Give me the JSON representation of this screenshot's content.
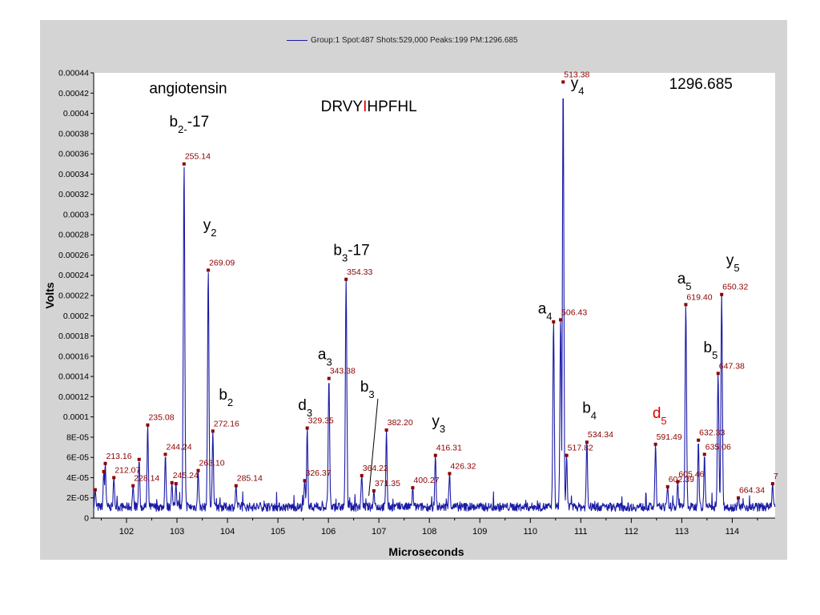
{
  "chart_data": {
    "type": "line",
    "legend": {
      "label": "Group:1 Spot:487 Shots:529,000 Peaks:199 PM:1296.685",
      "placement": "top-center"
    },
    "xlabel": "Microseconds",
    "ylabel": "Volts",
    "xlim": [
      101.35,
      114.85
    ],
    "ylim": [
      0,
      0.00044
    ],
    "x_ticks": [
      "102",
      "103",
      "104",
      "105",
      "106",
      "107",
      "108",
      "109",
      "110",
      "111",
      "112",
      "113",
      "114"
    ],
    "y_ticks": [
      "0",
      "2E-05",
      "4E-05",
      "6E-05",
      "8E-05",
      "0.0001",
      "0.00012",
      "0.00014",
      "0.00016",
      "0.00018",
      "0.0002",
      "0.00022",
      "0.00024",
      "0.00026",
      "0.00028",
      "0.0003",
      "0.00032",
      "0.00034",
      "0.00036",
      "0.00038",
      "0.0004",
      "0.00042",
      "0.00044"
    ],
    "line_color": "#1a1aa6",
    "label_color": "#8b0000",
    "peaks": [
      {
        "x": 101.38,
        "y": 2.8e-05,
        "label": ""
      },
      {
        "x": 101.55,
        "y": 4.6e-05,
        "label": ""
      },
      {
        "x": 101.58,
        "y": 5.4e-05,
        "label": "213.16"
      },
      {
        "x": 101.75,
        "y": 4e-05,
        "label": "212.07"
      },
      {
        "x": 102.13,
        "y": 3.2e-05,
        "label": "228.14"
      },
      {
        "x": 102.25,
        "y": 5.8e-05,
        "label": ""
      },
      {
        "x": 102.42,
        "y": 9.2e-05,
        "label": "235.08"
      },
      {
        "x": 102.77,
        "y": 6.3e-05,
        "label": "244.24"
      },
      {
        "x": 102.9,
        "y": 3.5e-05,
        "label": "245.24"
      },
      {
        "x": 102.98,
        "y": 3.4e-05,
        "label": ""
      },
      {
        "x": 103.14,
        "y": 0.00035,
        "label": "255.14"
      },
      {
        "x": 103.42,
        "y": 4.7e-05,
        "label": "263.10"
      },
      {
        "x": 103.62,
        "y": 0.000245,
        "label": "269.09"
      },
      {
        "x": 103.71,
        "y": 8.6e-05,
        "label": "272.16"
      },
      {
        "x": 104.17,
        "y": 3.2e-05,
        "label": "285.14"
      },
      {
        "x": 105.53,
        "y": 3.7e-05,
        "label": "326.37"
      },
      {
        "x": 105.58,
        "y": 8.9e-05,
        "label": "329.35"
      },
      {
        "x": 106.01,
        "y": 0.000138,
        "label": "343.38"
      },
      {
        "x": 106.35,
        "y": 0.000236,
        "label": "354.33"
      },
      {
        "x": 106.66,
        "y": 4.2e-05,
        "label": "364.22"
      },
      {
        "x": 106.9,
        "y": 2.7e-05,
        "label": "371.35"
      },
      {
        "x": 107.15,
        "y": 8.7e-05,
        "label": "382.20"
      },
      {
        "x": 107.67,
        "y": 3e-05,
        "label": "400.27"
      },
      {
        "x": 108.12,
        "y": 6.2e-05,
        "label": "416.31"
      },
      {
        "x": 108.4,
        "y": 4.4e-05,
        "label": "426.32"
      },
      {
        "x": 110.46,
        "y": 0.000194,
        "label": ""
      },
      {
        "x": 110.6,
        "y": 0.000196,
        "label": "506.43"
      },
      {
        "x": 110.65,
        "y": 0.000431,
        "label": "513.38"
      },
      {
        "x": 110.72,
        "y": 6.2e-05,
        "label": "517.82"
      },
      {
        "x": 111.12,
        "y": 7.5e-05,
        "label": "534.34"
      },
      {
        "x": 112.48,
        "y": 7.3e-05,
        "label": "591.49"
      },
      {
        "x": 112.72,
        "y": 3.1e-05,
        "label": "602.39"
      },
      {
        "x": 112.92,
        "y": 3.6e-05,
        "label": "605.46"
      },
      {
        "x": 113.08,
        "y": 0.000211,
        "label": "619.40"
      },
      {
        "x": 113.33,
        "y": 7.7e-05,
        "label": "632.33"
      },
      {
        "x": 113.45,
        "y": 6.3e-05,
        "label": "635.06"
      },
      {
        "x": 113.72,
        "y": 0.000143,
        "label": "647.38"
      },
      {
        "x": 113.79,
        "y": 0.000221,
        "label": "650.32"
      },
      {
        "x": 114.12,
        "y": 2e-05,
        "label": "664.34"
      },
      {
        "x": 114.8,
        "y": 3.4e-05,
        "label": "7"
      }
    ],
    "annotations": [
      {
        "text": "angiotensin",
        "sub": "",
        "suffix": "",
        "color": "#000000",
        "x": 102.45,
        "y": 0.00042
      },
      {
        "text": "DRVY",
        "sub": "",
        "suffix": "",
        "color": "#000000",
        "x": 105.85,
        "y": 0.000402,
        "segments": [
          {
            "text": "DRVY",
            "color": "#000000"
          },
          {
            "text": "I",
            "color": "#dd0000"
          },
          {
            "text": "HPFHL",
            "color": "#000000"
          }
        ]
      },
      {
        "text": "b",
        "sub": "2-",
        "suffix": "-17",
        "color": "#000000",
        "x": 102.85,
        "y": 0.000387
      },
      {
        "text": "y",
        "sub": "2",
        "suffix": "",
        "color": "#000000",
        "x": 103.52,
        "y": 0.000285
      },
      {
        "text": "b",
        "sub": "3",
        "suffix": "-17",
        "color": "#000000",
        "x": 106.1,
        "y": 0.00026
      },
      {
        "text": "a",
        "sub": "3",
        "suffix": "",
        "color": "#000000",
        "x": 105.79,
        "y": 0.000157
      },
      {
        "text": "b",
        "sub": "2",
        "suffix": "",
        "color": "#000000",
        "x": 103.83,
        "y": 0.000117
      },
      {
        "text": "d",
        "sub": "3",
        "suffix": "",
        "color": "#000000",
        "x": 105.4,
        "y": 0.000107
      },
      {
        "text": "b",
        "sub": "3",
        "suffix": "",
        "color": "#000000",
        "x": 106.63,
        "y": 0.000125
      },
      {
        "text": "y",
        "sub": "3",
        "suffix": "",
        "color": "#000000",
        "x": 108.05,
        "y": 9.1e-05
      },
      {
        "text": "y",
        "sub": "4",
        "suffix": "",
        "color": "#000000",
        "x": 110.8,
        "y": 0.000425
      },
      {
        "text": "1296.685",
        "sub": "",
        "suffix": "",
        "color": "#000000",
        "x": 112.75,
        "y": 0.000424
      },
      {
        "text": "a",
        "sub": "4",
        "suffix": "",
        "color": "#000000",
        "x": 110.15,
        "y": 0.000202
      },
      {
        "text": "b",
        "sub": "4",
        "suffix": "",
        "color": "#000000",
        "x": 111.03,
        "y": 0.000104
      },
      {
        "text": "d",
        "sub": "5",
        "suffix": "",
        "color": "#dd0000",
        "x": 112.42,
        "y": 9.9e-05
      },
      {
        "text": "a",
        "sub": "5",
        "suffix": "",
        "color": "#000000",
        "x": 112.91,
        "y": 0.000232
      },
      {
        "text": "b",
        "sub": "5",
        "suffix": "",
        "color": "#000000",
        "x": 113.43,
        "y": 0.000164
      },
      {
        "text": "y",
        "sub": "5",
        "suffix": "",
        "color": "#000000",
        "x": 113.88,
        "y": 0.00025
      }
    ],
    "leader_line": {
      "x1": 106.8,
      "y1": 2.2e-05,
      "x2": 106.98,
      "y2": 0.000118
    }
  }
}
